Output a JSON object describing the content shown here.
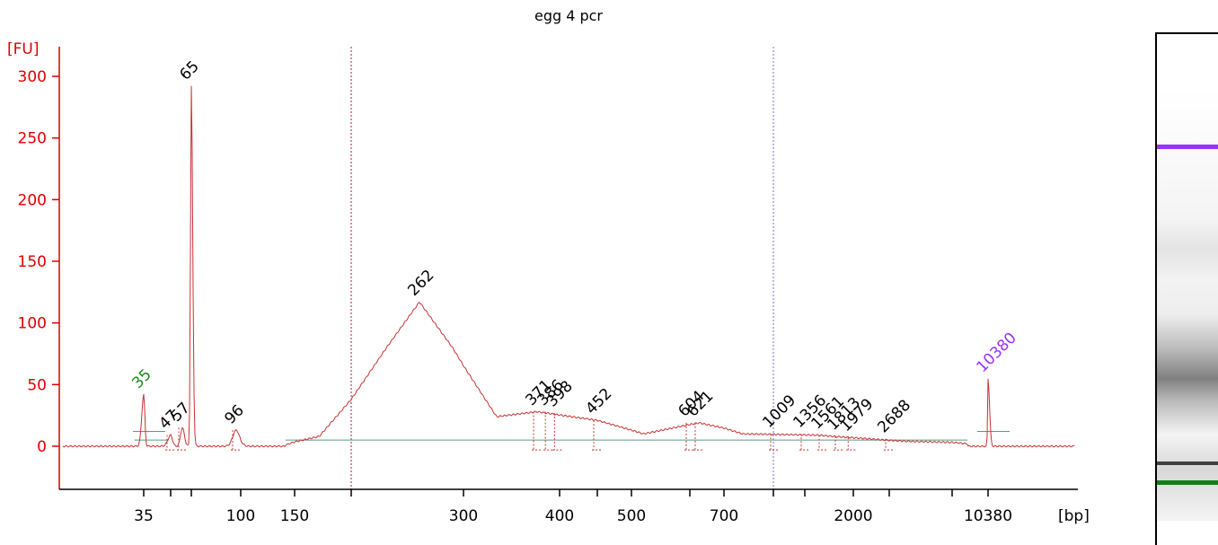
{
  "chart_data": {
    "type": "line",
    "title": "egg 4 pcr",
    "ylabel": "[FU]",
    "xlabel": "[bp]",
    "ylim": [
      -30,
      320
    ],
    "y_ticks": [
      0,
      50,
      100,
      150,
      200,
      250,
      300
    ],
    "x_tick_labels": [
      "35",
      "100",
      "150",
      "300",
      "400",
      "500",
      "700",
      "2000",
      "10380"
    ],
    "colors": {
      "axis": "#dd0000",
      "trace": "#c83232",
      "baseline": "#5a9a82",
      "lower_marker": "#1a8a1a",
      "upper_marker": "#9b30ff",
      "peak_label": "#000000",
      "ladder_marker_band": "#9b30ff",
      "ladder_lower_band": "#108010"
    },
    "peaks": [
      {
        "label": "35",
        "bp": 35,
        "fu": 42,
        "kind": "lower_marker"
      },
      {
        "label": "47",
        "bp": 47,
        "fu": 9,
        "kind": "peak"
      },
      {
        "label": "57",
        "bp": 57,
        "fu": 15,
        "kind": "peak"
      },
      {
        "label": "65",
        "bp": 65,
        "fu": 292,
        "kind": "peak"
      },
      {
        "label": "96",
        "bp": 96,
        "fu": 13,
        "kind": "peak"
      },
      {
        "label": "262",
        "bp": 262,
        "fu": 117,
        "kind": "peak"
      },
      {
        "label": "371",
        "bp": 371,
        "fu": 28,
        "kind": "peak"
      },
      {
        "label": "386",
        "bp": 386,
        "fu": 28,
        "kind": "peak"
      },
      {
        "label": "398",
        "bp": 398,
        "fu": 27,
        "kind": "peak"
      },
      {
        "label": "452",
        "bp": 452,
        "fu": 21,
        "kind": "peak"
      },
      {
        "label": "604",
        "bp": 604,
        "fu": 19,
        "kind": "peak"
      },
      {
        "label": "621",
        "bp": 621,
        "fu": 19,
        "kind": "peak"
      },
      {
        "label": "1009",
        "bp": 1009,
        "fu": 10,
        "kind": "peak"
      },
      {
        "label": "1356",
        "bp": 1356,
        "fu": 10,
        "kind": "peak"
      },
      {
        "label": "1561",
        "bp": 1561,
        "fu": 9,
        "kind": "peak"
      },
      {
        "label": "1813",
        "bp": 1813,
        "fu": 8,
        "kind": "peak"
      },
      {
        "label": "1979",
        "bp": 1979,
        "fu": 7,
        "kind": "peak"
      },
      {
        "label": "2688",
        "bp": 2688,
        "fu": 6,
        "kind": "peak"
      },
      {
        "label": "10380",
        "bp": 10380,
        "fu": 55,
        "kind": "upper_marker"
      }
    ],
    "smear": [
      {
        "bp": 140,
        "fu": 1
      },
      {
        "bp": 170,
        "fu": 8
      },
      {
        "bp": 200,
        "fu": 38
      },
      {
        "bp": 230,
        "fu": 80
      },
      {
        "bp": 262,
        "fu": 117
      },
      {
        "bp": 290,
        "fu": 80
      },
      {
        "bp": 330,
        "fu": 24
      },
      {
        "bp": 371,
        "fu": 28
      },
      {
        "bp": 452,
        "fu": 21
      },
      {
        "bp": 520,
        "fu": 10
      },
      {
        "bp": 621,
        "fu": 19
      },
      {
        "bp": 800,
        "fu": 10
      },
      {
        "bp": 1500,
        "fu": 9
      },
      {
        "bp": 3000,
        "fu": 4
      },
      {
        "bp": 6000,
        "fu": 2
      }
    ]
  }
}
